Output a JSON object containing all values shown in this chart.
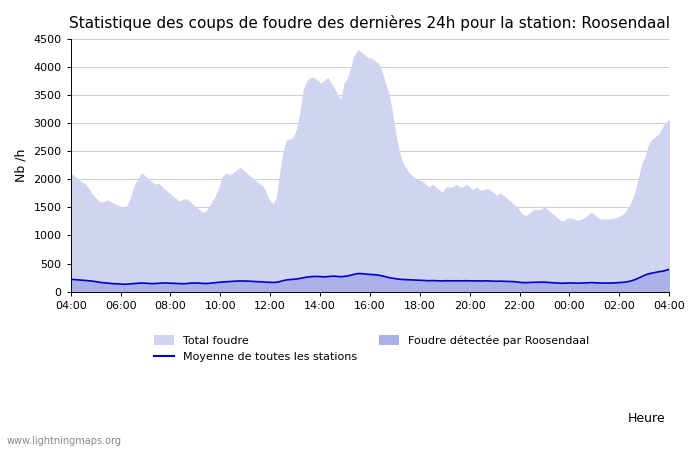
{
  "title": "Statistique des coups de foudre des dernières 24h pour la station: Roosendaal",
  "xlabel": "Heure",
  "ylabel": "Nb /h",
  "watermark": "www.lightningmaps.org",
  "ylim": [
    0,
    4500
  ],
  "yticks": [
    0,
    500,
    1000,
    1500,
    2000,
    2500,
    3000,
    3500,
    4000,
    4500
  ],
  "x_labels": [
    "04:00",
    "06:00",
    "08:00",
    "10:00",
    "12:00",
    "14:00",
    "16:00",
    "18:00",
    "20:00",
    "22:00",
    "00:00",
    "02:00",
    "04:00"
  ],
  "background_color": "#ffffff",
  "fill_color_total": "#d0d4f0",
  "fill_color_roosendaal": "#aab0e8",
  "line_color": "#0000cc",
  "total_foudre": [
    2100,
    2050,
    2000,
    1950,
    1920,
    1850,
    1750,
    1680,
    1620,
    1580,
    1600,
    1620,
    1580,
    1550,
    1530,
    1500,
    1480,
    1550,
    1700,
    1900,
    2000,
    2100,
    2050,
    2000,
    1950,
    1900,
    1920,
    1850,
    1800,
    1750,
    1700,
    1650,
    1600,
    1620,
    1650,
    1600,
    1550,
    1500,
    1450,
    1400,
    1420,
    1500,
    1600,
    1700,
    1850,
    2050,
    2100,
    2080,
    2100,
    2150,
    2200,
    2150,
    2100,
    2050,
    2000,
    1950,
    1900,
    1850,
    1700,
    1600,
    1550,
    1680,
    2100,
    2500,
    2700,
    2700,
    2750,
    2900,
    3200,
    3600,
    3750,
    3800,
    3800,
    3750,
    3700,
    3750,
    3800,
    3700,
    3600,
    3500,
    3400,
    3700,
    3800,
    4000,
    4200,
    4300,
    4250,
    4200,
    4150,
    4150,
    4100,
    4050,
    3900,
    3700,
    3500,
    3200,
    2800,
    2500,
    2300,
    2200,
    2100,
    2050,
    2000,
    1980,
    1950,
    1900,
    1850,
    1900,
    1850,
    1800,
    1750,
    1850,
    1850,
    1850,
    1900,
    1850,
    1850,
    1900,
    1850,
    1800,
    1850,
    1800,
    1800,
    1830,
    1800,
    1750,
    1700,
    1750,
    1700,
    1650,
    1600,
    1550,
    1500,
    1400,
    1350,
    1350,
    1400,
    1450,
    1450,
    1450,
    1500,
    1450,
    1400,
    1350,
    1300,
    1250,
    1250,
    1300,
    1300,
    1280,
    1260,
    1280,
    1300,
    1350,
    1400,
    1350,
    1300,
    1280,
    1280,
    1280,
    1290,
    1300,
    1320,
    1350,
    1400,
    1500,
    1600,
    1750,
    2000,
    2250,
    2400,
    2600,
    2700,
    2750,
    2800,
    2900,
    3000,
    3050
  ],
  "roosendaal": [
    220,
    210,
    205,
    200,
    195,
    190,
    185,
    175,
    165,
    155,
    150,
    145,
    140,
    135,
    135,
    130,
    125,
    130,
    135,
    140,
    145,
    150,
    145,
    140,
    138,
    140,
    145,
    148,
    150,
    148,
    145,
    142,
    140,
    138,
    140,
    145,
    148,
    150,
    148,
    145,
    142,
    145,
    150,
    155,
    160,
    165,
    170,
    175,
    178,
    182,
    185,
    185,
    185,
    182,
    180,
    178,
    175,
    170,
    165,
    162,
    160,
    165,
    178,
    195,
    205,
    210,
    215,
    220,
    230,
    245,
    255,
    260,
    265,
    265,
    260,
    258,
    262,
    268,
    270,
    265,
    260,
    268,
    275,
    290,
    305,
    318,
    315,
    310,
    305,
    302,
    298,
    292,
    280,
    265,
    250,
    238,
    228,
    220,
    215,
    212,
    208,
    205,
    202,
    200,
    198,
    195,
    192,
    195,
    192,
    190,
    188,
    192,
    190,
    190,
    192,
    190,
    190,
    192,
    190,
    188,
    190,
    188,
    188,
    190,
    188,
    185,
    182,
    185,
    182,
    180,
    178,
    175,
    170,
    162,
    158,
    158,
    162,
    165,
    165,
    165,
    168,
    162,
    158,
    155,
    152,
    148,
    148,
    152,
    152,
    150,
    148,
    150,
    152,
    155,
    160,
    155,
    152,
    150,
    150,
    150,
    152,
    154,
    158,
    162,
    168,
    178,
    192,
    212,
    240,
    268,
    295,
    315,
    328,
    340,
    352,
    360,
    375,
    395,
    410,
    420,
    425,
    385,
    370,
    360
  ],
  "mean_line": [
    220,
    215,
    210,
    205,
    200,
    195,
    190,
    182,
    172,
    162,
    156,
    150,
    145,
    140,
    138,
    134,
    130,
    134,
    140,
    145,
    150,
    154,
    150,
    145,
    142,
    144,
    148,
    152,
    154,
    151,
    148,
    145,
    142,
    140,
    142,
    148,
    152,
    154,
    150,
    147,
    144,
    148,
    154,
    160,
    165,
    172,
    176,
    180,
    183,
    186,
    190,
    189,
    188,
    185,
    182,
    180,
    176,
    172,
    167,
    164,
    162,
    168,
    181,
    198,
    210,
    215,
    220,
    226,
    237,
    250,
    260,
    266,
    270,
    270,
    266,
    263,
    267,
    273,
    275,
    270,
    265,
    272,
    280,
    295,
    310,
    322,
    320,
    314,
    308,
    305,
    300,
    294,
    282,
    268,
    252,
    240,
    230,
    222,
    217,
    214,
    210,
    207,
    204,
    202,
    200,
    197,
    194,
    197,
    194,
    192,
    190,
    194,
    192,
    192,
    194,
    192,
    192,
    194,
    192,
    190,
    192,
    190,
    190,
    192,
    190,
    187,
    184,
    187,
    184,
    182,
    180,
    177,
    172,
    164,
    160,
    160,
    164,
    167,
    167,
    167,
    170,
    164,
    160,
    157,
    154,
    150,
    150,
    154,
    154,
    152,
    150,
    152,
    154,
    157,
    162,
    157,
    154,
    152,
    152,
    152,
    154,
    156,
    160,
    164,
    170,
    180,
    195,
    215,
    243,
    271,
    298,
    318,
    331,
    343,
    355,
    362,
    378,
    398,
    413,
    422,
    428,
    390,
    374,
    363
  ],
  "legend_total": "Total foudre",
  "legend_mean": "Moyenne de toutes les stations",
  "legend_roosendaal": "Foudre détectée par Roosendaal",
  "title_fontsize": 11,
  "axis_fontsize": 9,
  "tick_fontsize": 8,
  "legend_fontsize": 8
}
